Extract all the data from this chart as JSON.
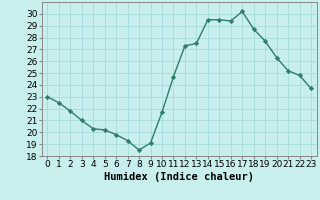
{
  "x": [
    0,
    1,
    2,
    3,
    4,
    5,
    6,
    7,
    8,
    9,
    10,
    11,
    12,
    13,
    14,
    15,
    16,
    17,
    18,
    19,
    20,
    21,
    22,
    23
  ],
  "y": [
    23,
    22.5,
    21.8,
    21.0,
    20.3,
    20.2,
    19.8,
    19.3,
    18.5,
    19.1,
    21.7,
    24.7,
    27.3,
    27.5,
    29.5,
    29.5,
    29.4,
    30.2,
    28.7,
    27.7,
    26.3,
    25.2,
    24.8,
    23.7
  ],
  "line_color": "#2e7d6e",
  "marker": "D",
  "marker_size": 2.2,
  "bg_color": "#c8eeee",
  "grid_color": "#aadddd",
  "xlabel": "Humidex (Indice chaleur)",
  "ylim": [
    18,
    31
  ],
  "xlim": [
    -0.5,
    23.5
  ],
  "yticks": [
    18,
    19,
    20,
    21,
    22,
    23,
    24,
    25,
    26,
    27,
    28,
    29,
    30
  ],
  "xticks": [
    0,
    1,
    2,
    3,
    4,
    5,
    6,
    7,
    8,
    9,
    10,
    11,
    12,
    13,
    14,
    15,
    16,
    17,
    18,
    19,
    20,
    21,
    22,
    23
  ],
  "xlabel_fontsize": 7.5,
  "tick_fontsize": 6.5,
  "line_width": 1.0
}
